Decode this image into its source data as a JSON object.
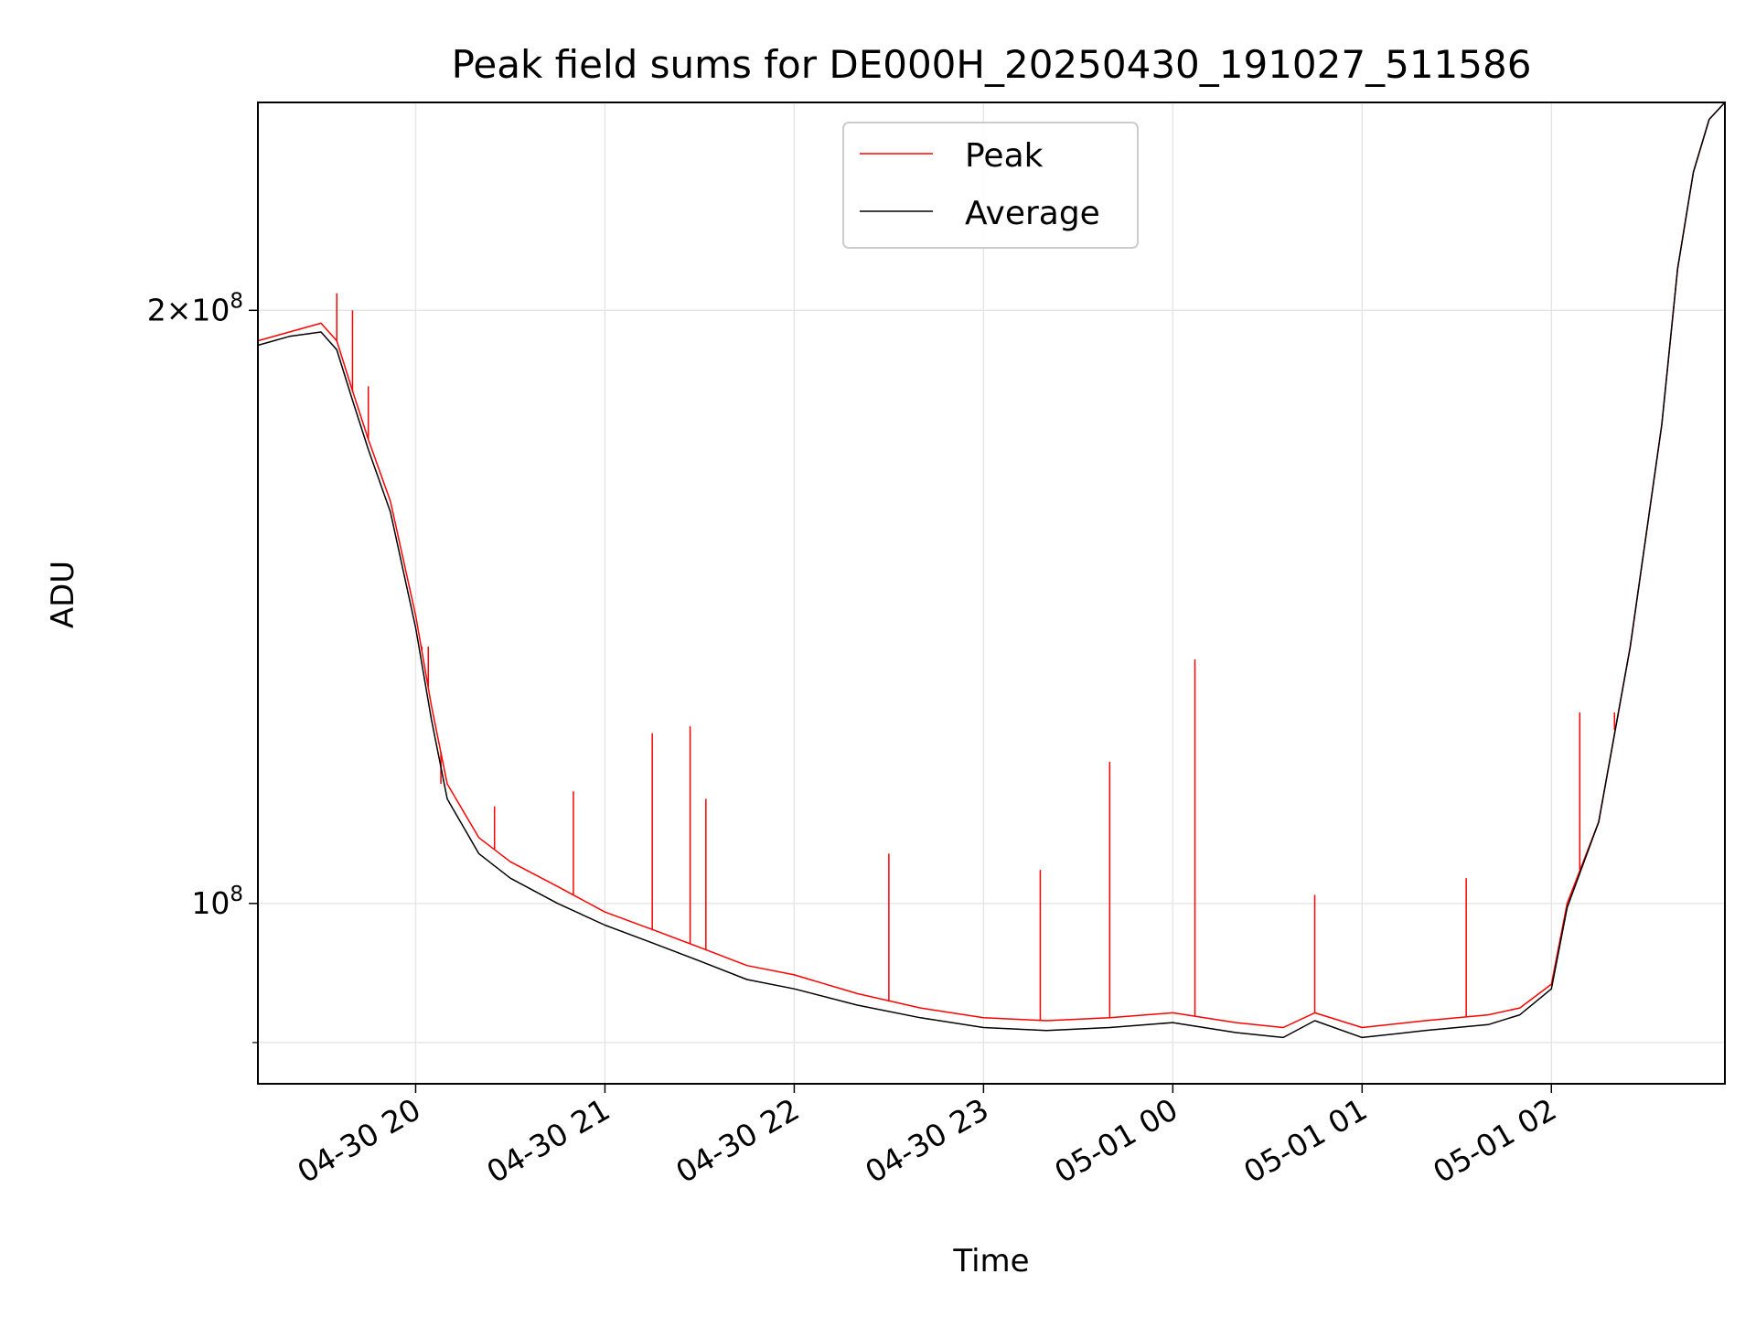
{
  "chart_data": {
    "type": "line",
    "title": "Peak field sums for DE000H_20250430_191027_511586",
    "xlabel": "Time",
    "ylabel": "ADU",
    "y_scale": "log",
    "ylim": [
      81000000.0,
      255000000.0
    ],
    "xlim": [
      "2025-04-30 19:10",
      "2025-05-01 02:55"
    ],
    "x_ticks": [
      "2025-04-30 20:00",
      "2025-04-30 21:00",
      "2025-04-30 22:00",
      "2025-04-30 23:00",
      "2025-05-01 00:00",
      "2025-05-01 01:00",
      "2025-05-01 02:00"
    ],
    "x_tick_labels": [
      "04-30 20",
      "04-30 21",
      "04-30 22",
      "04-30 23",
      "05-01 00",
      "05-01 01",
      "05-01 02"
    ],
    "y_major_ticks": [
      100000000.0,
      200000000.0
    ],
    "y_major_tick_labels": [
      "10^8",
      "2×10^8"
    ],
    "y_minor_ticks": [
      85000000.0
    ],
    "grid": true,
    "legend_position": "upper center",
    "series": [
      {
        "name": "Peak",
        "color": "#ff0000",
        "x": [
          "2025-04-30 19:10",
          "2025-04-30 19:20",
          "2025-04-30 19:30",
          "2025-04-30 19:35",
          "2025-04-30 19:40",
          "2025-04-30 19:45",
          "2025-04-30 19:52",
          "2025-04-30 20:00",
          "2025-04-30 20:05",
          "2025-04-30 20:10",
          "2025-04-30 20:20",
          "2025-04-30 20:30",
          "2025-04-30 20:45",
          "2025-04-30 21:00",
          "2025-04-30 21:15",
          "2025-04-30 21:30",
          "2025-04-30 21:45",
          "2025-04-30 22:00",
          "2025-04-30 22:20",
          "2025-04-30 22:40",
          "2025-04-30 23:00",
          "2025-04-30 23:20",
          "2025-04-30 23:40",
          "2025-05-01 00:00",
          "2025-05-01 00:20",
          "2025-05-01 00:35",
          "2025-05-01 00:45",
          "2025-05-01 01:00",
          "2025-05-01 01:20",
          "2025-05-01 01:40",
          "2025-05-01 01:50",
          "2025-05-01 02:00",
          "2025-05-01 02:05",
          "2025-05-01 02:15",
          "2025-05-01 02:25",
          "2025-05-01 02:35",
          "2025-05-01 02:40",
          "2025-05-01 02:45",
          "2025-05-01 02:50",
          "2025-05-01 02:55"
        ],
        "y": [
          193000000.0,
          195000000.0,
          197000000.0,
          193000000.0,
          182000000.0,
          172000000.0,
          160000000.0,
          140000000.0,
          126000000.0,
          115000000.0,
          108000000.0,
          105000000.0,
          102000000.0,
          99000000.0,
          97000000.0,
          95000000.0,
          93000000.0,
          92000000.0,
          90000000.0,
          88500000.0,
          87500000.0,
          87200000.0,
          87500000.0,
          88000000.0,
          87000000.0,
          86500000.0,
          88000000.0,
          86500000.0,
          87200000.0,
          87800000.0,
          88500000.0,
          91000000.0,
          100000000.0,
          110000000.0,
          135000000.0,
          175000000.0,
          210000000.0,
          235000000.0,
          250000000.0,
          255000000.0
        ],
        "spikes": [
          {
            "x": "2025-04-30 19:35",
            "y": 204000000.0
          },
          {
            "x": "2025-04-30 19:40",
            "y": 200000000.0
          },
          {
            "x": "2025-04-30 19:45",
            "y": 183000000.0
          },
          {
            "x": "2025-04-30 20:02",
            "y": 135000000.0
          },
          {
            "x": "2025-04-30 20:04",
            "y": 135000000.0
          },
          {
            "x": "2025-04-30 20:08",
            "y": 115000000.0
          },
          {
            "x": "2025-04-30 20:25",
            "y": 112000000.0
          },
          {
            "x": "2025-04-30 20:50",
            "y": 114000000.0
          },
          {
            "x": "2025-04-30 21:15",
            "y": 122000000.0
          },
          {
            "x": "2025-04-30 21:27",
            "y": 123000000.0
          },
          {
            "x": "2025-04-30 21:32",
            "y": 113000000.0
          },
          {
            "x": "2025-04-30 22:30",
            "y": 106000000.0
          },
          {
            "x": "2025-04-30 23:18",
            "y": 104000000.0
          },
          {
            "x": "2025-04-30 23:40",
            "y": 118000000.0
          },
          {
            "x": "2025-05-01 00:07",
            "y": 133000000.0
          },
          {
            "x": "2025-05-01 00:45",
            "y": 101000000.0
          },
          {
            "x": "2025-05-01 01:33",
            "y": 103000000.0
          },
          {
            "x": "2025-05-01 02:09",
            "y": 125000000.0
          },
          {
            "x": "2025-05-01 02:20",
            "y": 125000000.0
          }
        ]
      },
      {
        "name": "Average",
        "color": "#000000",
        "x": [
          "2025-04-30 19:10",
          "2025-04-30 19:20",
          "2025-04-30 19:30",
          "2025-04-30 19:35",
          "2025-04-30 19:40",
          "2025-04-30 19:45",
          "2025-04-30 19:52",
          "2025-04-30 20:00",
          "2025-04-30 20:05",
          "2025-04-30 20:10",
          "2025-04-30 20:20",
          "2025-04-30 20:30",
          "2025-04-30 20:45",
          "2025-04-30 21:00",
          "2025-04-30 21:15",
          "2025-04-30 21:30",
          "2025-04-30 21:45",
          "2025-04-30 22:00",
          "2025-04-30 22:20",
          "2025-04-30 22:40",
          "2025-04-30 23:00",
          "2025-04-30 23:20",
          "2025-04-30 23:40",
          "2025-05-01 00:00",
          "2025-05-01 00:20",
          "2025-05-01 00:35",
          "2025-05-01 00:45",
          "2025-05-01 01:00",
          "2025-05-01 01:20",
          "2025-05-01 01:40",
          "2025-05-01 01:50",
          "2025-05-01 02:00",
          "2025-05-01 02:05",
          "2025-05-01 02:15",
          "2025-05-01 02:25",
          "2025-05-01 02:35",
          "2025-05-01 02:40",
          "2025-05-01 02:45",
          "2025-05-01 02:50",
          "2025-05-01 02:55"
        ],
        "y": [
          192000000.0,
          194000000.0,
          195000000.0,
          191000000.0,
          180000000.0,
          170000000.0,
          158000000.0,
          138000000.0,
          124000000.0,
          113000000.0,
          106000000.0,
          103000000.0,
          100000000.0,
          97500000.0,
          95500000.0,
          93500000.0,
          91500000.0,
          90500000.0,
          88800000.0,
          87500000.0,
          86500000.0,
          86200000.0,
          86500000.0,
          87000000.0,
          86000000.0,
          85500000.0,
          87200000.0,
          85500000.0,
          86200000.0,
          86800000.0,
          87800000.0,
          90500000.0,
          99500000.0,
          110000000.0,
          135000000.0,
          175000000.0,
          210000000.0,
          235000000.0,
          250000000.0,
          255000000.0
        ]
      }
    ]
  }
}
